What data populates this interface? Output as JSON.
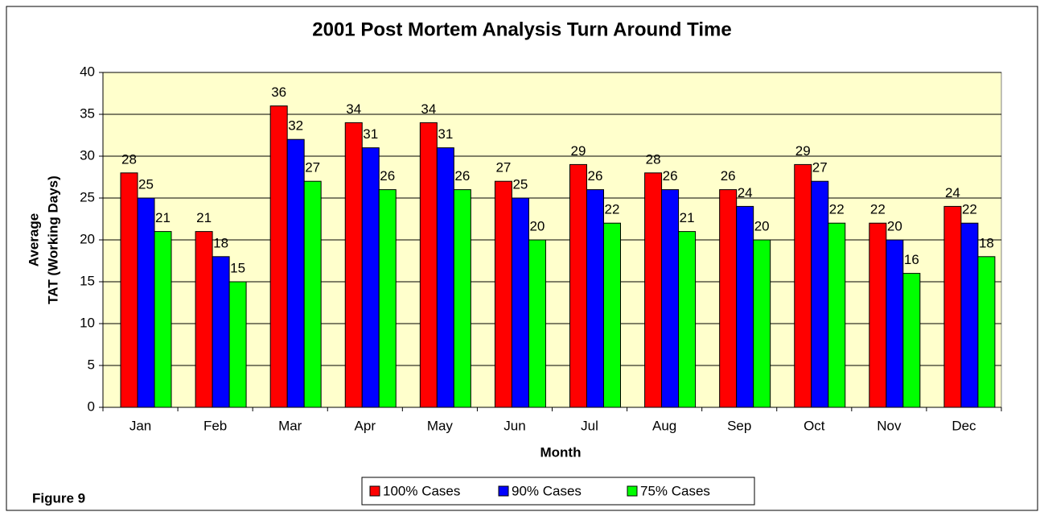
{
  "chart_data": {
    "type": "bar",
    "title": "2001 Post Mortem Analysis Turn Around Time",
    "xlabel": "Month",
    "ylabel": [
      "Average",
      "TAT (Working Days)"
    ],
    "annotation": "Figure 9",
    "categories": [
      "Jan",
      "Feb",
      "Mar",
      "Apr",
      "May",
      "Jun",
      "Jul",
      "Aug",
      "Sep",
      "Oct",
      "Nov",
      "Dec"
    ],
    "series": [
      {
        "name": "100% Cases",
        "color": "#ff0000",
        "values": [
          28,
          21,
          36,
          34,
          34,
          27,
          29,
          28,
          26,
          29,
          22,
          24
        ]
      },
      {
        "name": "90% Cases",
        "color": "#0000ff",
        "values": [
          25,
          18,
          32,
          31,
          31,
          25,
          26,
          26,
          24,
          27,
          20,
          22
        ]
      },
      {
        "name": "75% Cases",
        "color": "#00ff00",
        "values": [
          21,
          15,
          27,
          26,
          26,
          20,
          22,
          21,
          20,
          22,
          16,
          18
        ]
      }
    ],
    "ylim": [
      0,
      40
    ],
    "yticks": [
      0,
      5,
      10,
      15,
      20,
      25,
      30,
      35,
      40
    ],
    "grid": true,
    "legend": "bottom"
  }
}
